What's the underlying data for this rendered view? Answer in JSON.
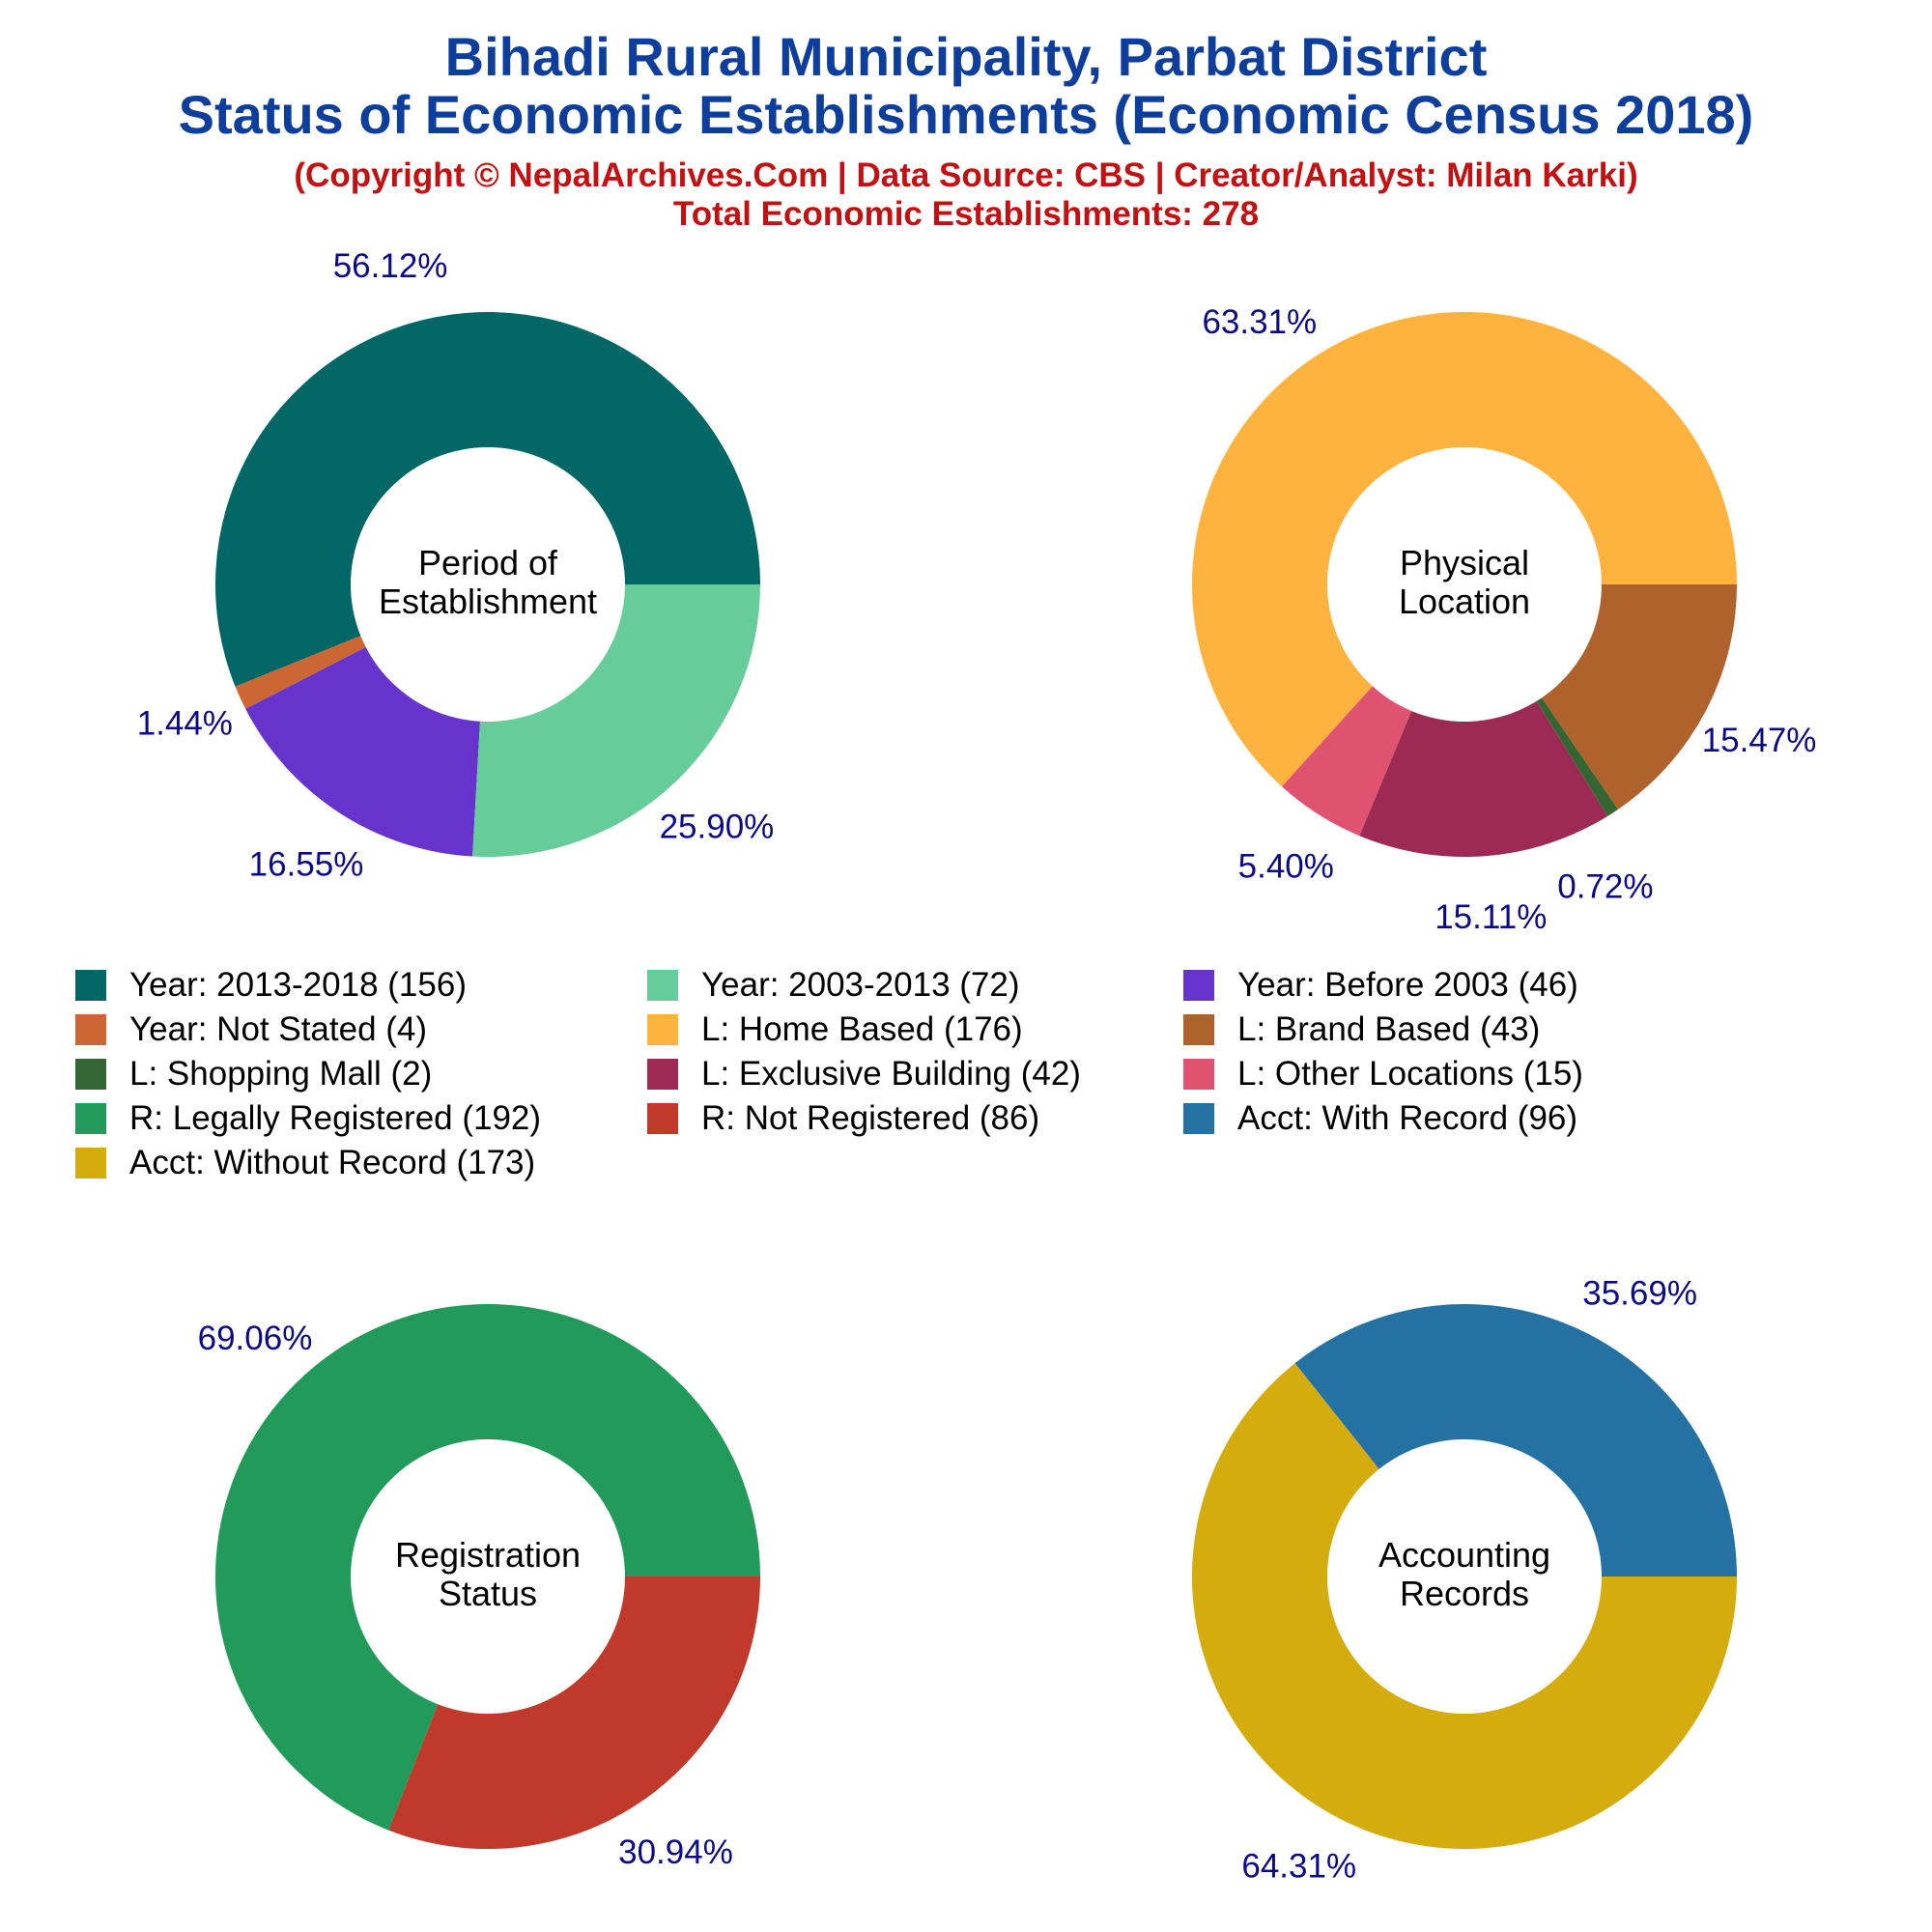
{
  "title_line1": "Bihadi Rural Municipality, Parbat District",
  "title_line2": "Status of Economic Establishments (Economic Census 2018)",
  "copyright": "(Copyright © NepalArchives.Com | Data Source: CBS | Creator/Analyst: Milan Karki)",
  "total": "Total Economic Establishments: 278",
  "legend": [
    {
      "label": "Year: 2013-2018 (156)",
      "color": "#006666"
    },
    {
      "label": "Year: 2003-2013 (72)",
      "color": "#66cc99"
    },
    {
      "label": "Year: Before 2003 (46)",
      "color": "#6633cc"
    },
    {
      "label": "Year: Not Stated (4)",
      "color": "#cc6633"
    },
    {
      "label": "L: Home Based (176)",
      "color": "#ffb33f"
    },
    {
      "label": "L: Brand Based (43)",
      "color": "#b0622c"
    },
    {
      "label": "L: Shopping Mall (2)",
      "color": "#336633"
    },
    {
      "label": "L: Exclusive Building (42)",
      "color": "#9c2a53"
    },
    {
      "label": "L: Other Locations (15)",
      "color": "#e05370"
    },
    {
      "label": "R: Legally Registered (192)",
      "color": "#229a59"
    },
    {
      "label": "R: Not Registered (86)",
      "color": "#c0392b"
    },
    {
      "label": "Acct: With Record (96)",
      "color": "#2471a3"
    },
    {
      "label": "Acct: Without Record (173)",
      "color": "#d4ac0d"
    }
  ],
  "chart_data": [
    {
      "type": "pie",
      "center_label": [
        "Period of",
        "Establishment"
      ],
      "slices": [
        {
          "name": "Year: 2013-2018",
          "value": 156,
          "pct": "56.12%",
          "color": "#006666"
        },
        {
          "name": "Year: Not Stated",
          "value": 4,
          "pct": "1.44%",
          "color": "#cc6633"
        },
        {
          "name": "Year: Before 2003",
          "value": 46,
          "pct": "16.55%",
          "color": "#6633cc"
        },
        {
          "name": "Year: 2003-2013",
          "value": 72,
          "pct": "25.90%",
          "color": "#66cc99"
        }
      ]
    },
    {
      "type": "pie",
      "center_label": [
        "Physical",
        "Location"
      ],
      "slices": [
        {
          "name": "L: Home Based",
          "value": 176,
          "pct": "63.31%",
          "color": "#ffb33f"
        },
        {
          "name": "L: Other Locations",
          "value": 15,
          "pct": "5.40%",
          "color": "#e05370"
        },
        {
          "name": "L: Exclusive Building",
          "value": 42,
          "pct": "15.11%",
          "color": "#9c2a53"
        },
        {
          "name": "L: Shopping Mall",
          "value": 2,
          "pct": "0.72%",
          "color": "#336633"
        },
        {
          "name": "L: Brand Based",
          "value": 43,
          "pct": "15.47%",
          "color": "#b0622c"
        }
      ]
    },
    {
      "type": "pie",
      "center_label": [
        "Registration",
        "Status"
      ],
      "slices": [
        {
          "name": "R: Legally Registered",
          "value": 192,
          "pct": "69.06%",
          "color": "#229a59"
        },
        {
          "name": "R: Not Registered",
          "value": 86,
          "pct": "30.94%",
          "color": "#c0392b"
        }
      ]
    },
    {
      "type": "pie",
      "center_label": [
        "Accounting",
        "Records"
      ],
      "slices": [
        {
          "name": "Acct: With Record",
          "value": 96,
          "pct": "35.69%",
          "color": "#2471a3"
        },
        {
          "name": "Acct: Without Record",
          "value": 173,
          "pct": "64.31%",
          "color": "#d4ac0d"
        }
      ]
    }
  ]
}
